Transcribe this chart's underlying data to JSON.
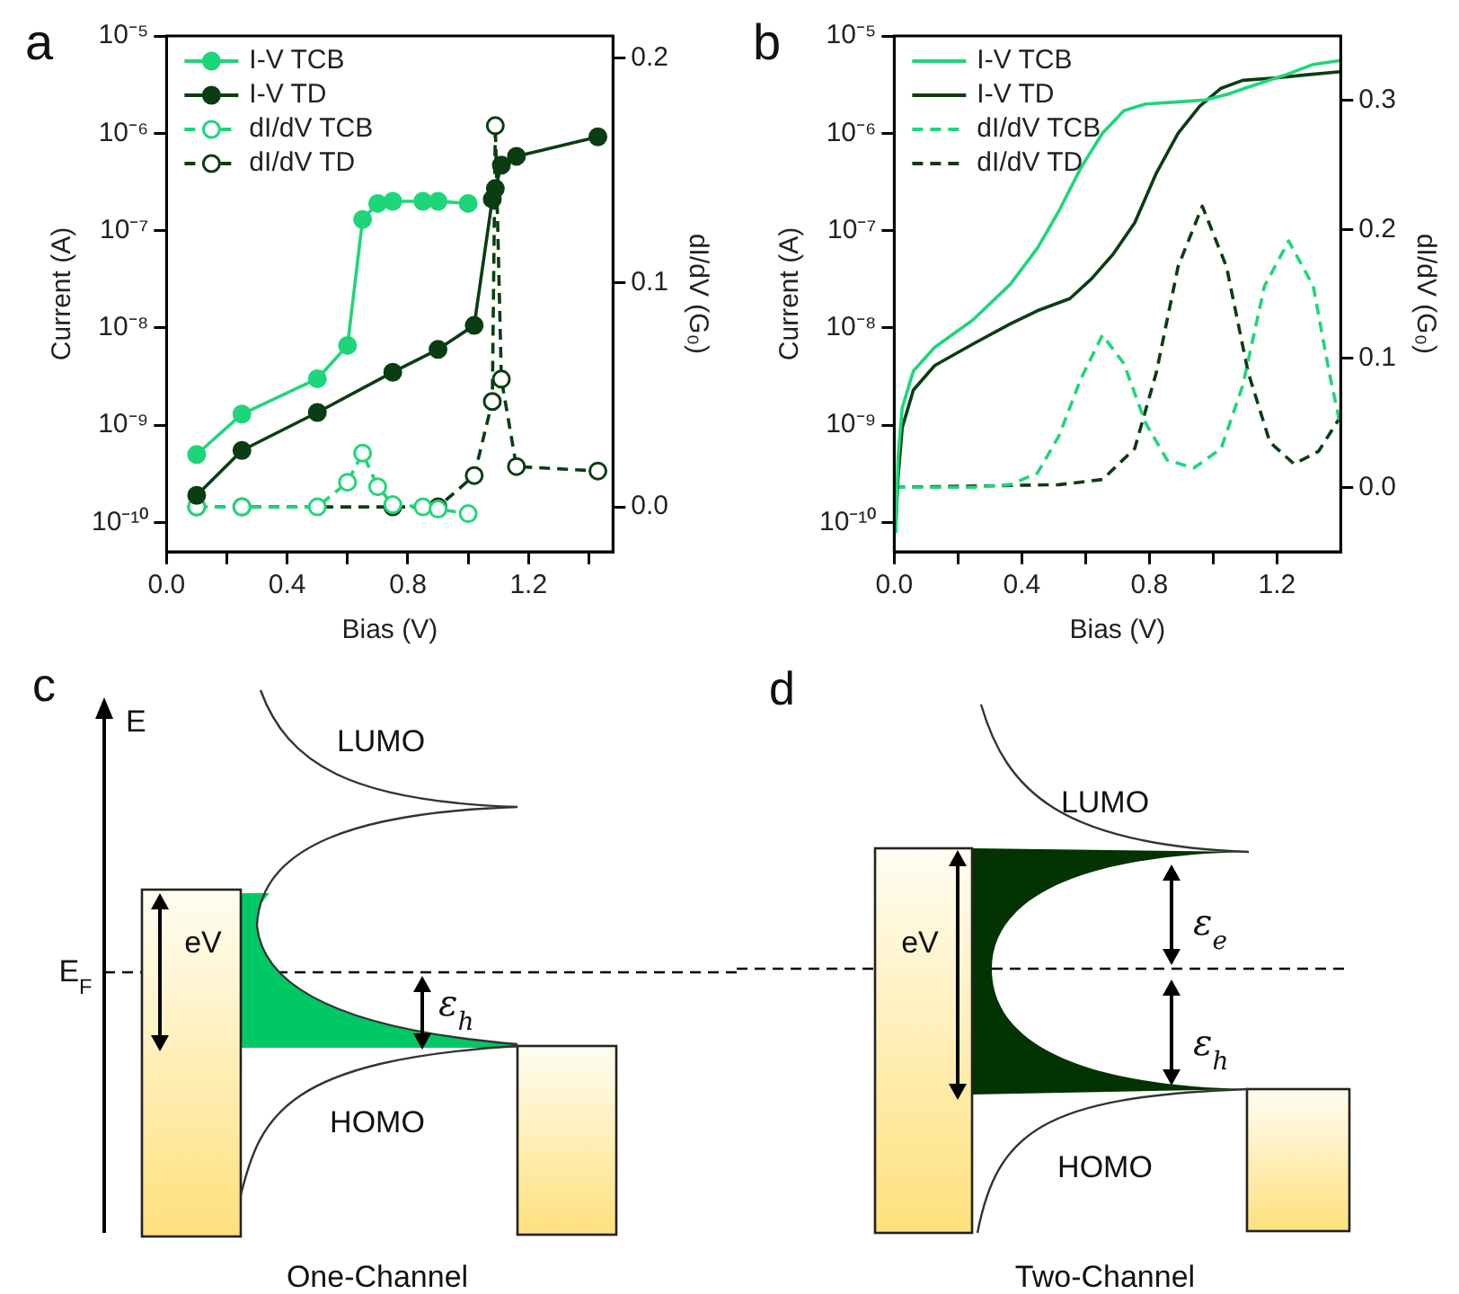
{
  "chart_data": [
    {
      "type": "line",
      "title": "a",
      "xlabel": "Bias (V)",
      "ylabel": "Current (A)",
      "y2label": "dI/dV (G₀)",
      "log": "y",
      "grid": false,
      "legend": "top left",
      "marker": "circle",
      "xlim": [
        0,
        1.48
      ],
      "xticks": [
        {
          "value": 0,
          "label": "0.0"
        },
        {
          "value": 0.2,
          "label": null
        },
        0.4,
        {
          "value": 0.6,
          "label": null
        },
        0.8,
        {
          "value": 1.0,
          "label": null
        },
        1.2,
        {
          "value": 1.4,
          "label": null
        }
      ],
      "ylim": [
        5e-11,
        1e-05
      ],
      "yticks": [
        {
          "value": 1e-10,
          "label": "10⁻¹⁰"
        },
        {
          "value": 1e-09,
          "label": "10⁻⁹"
        },
        {
          "value": 1e-08,
          "label": "10⁻⁸"
        },
        {
          "value": 1e-07,
          "label": "10⁻⁷"
        },
        {
          "value": 1e-06,
          "label": "10⁻⁶"
        },
        {
          "value": 1e-05,
          "label": "10⁻⁵"
        }
      ],
      "y2lim": [
        -0.02,
        0.21
      ],
      "y2ticks": [
        {
          "value": 0,
          "label": "0.0"
        },
        0.1,
        0.2
      ],
      "series": [
        {
          "name": "I-V TCB",
          "color": "#1ed67a",
          "line_style": "solid",
          "x": [
            0.1,
            0.25,
            0.5,
            0.6,
            0.65,
            0.7,
            0.75,
            0.85,
            0.9,
            1.0
          ],
          "values": [
            5e-10,
            1.3e-09,
            3e-09,
            6.6e-09,
            1.3e-07,
            1.9e-07,
            2e-07,
            2e-07,
            2e-07,
            1.9e-07
          ]
        },
        {
          "name": "I-V TD",
          "color": "#0a3d12",
          "line_style": "solid",
          "x": [
            0.1,
            0.25,
            0.5,
            0.75,
            0.9,
            1.02,
            1.08,
            1.09,
            1.11,
            1.16,
            1.43
          ],
          "values": [
            1.9e-10,
            5.5e-10,
            1.35e-09,
            3.5e-09,
            6e-09,
            1.06e-08,
            2.1e-07,
            2.7e-07,
            4.7e-07,
            5.8e-07,
            9.2e-07
          ]
        },
        {
          "name": "dI/dV TCB",
          "color": "#1ed67a",
          "line_style": "dashed",
          "axis": "y2",
          "x": [
            0.1,
            0.25,
            0.5,
            0.6,
            0.65,
            0.7,
            0.75,
            0.85,
            0.9,
            1.0
          ],
          "values": [
            0.0,
            0.0,
            0.0,
            0.011,
            0.024,
            0.009,
            0.001,
            0.0,
            -0.001,
            -0.003
          ]
        },
        {
          "name": "dI/dV TD",
          "color": "#0a3d12",
          "line_style": "dashed",
          "axis": "y2",
          "x": [
            0.1,
            0.25,
            0.75,
            0.9,
            1.02,
            1.08,
            1.09,
            1.11,
            1.16,
            1.43
          ],
          "values": [
            0.0,
            0.0,
            0.0,
            0.0,
            0.014,
            0.047,
            0.17,
            0.057,
            0.018,
            0.016
          ]
        }
      ]
    },
    {
      "type": "line",
      "title": "b",
      "xlabel": "Bias (V)",
      "ylabel": "Current (A)",
      "y2label": "dI/dV (G₀)",
      "log": "y",
      "grid": false,
      "legend": "top left",
      "xlim": [
        0,
        1.4
      ],
      "xticks": [
        {
          "value": 0,
          "label": "0.0"
        },
        {
          "value": 0.2,
          "label": null
        },
        0.4,
        {
          "value": 0.6,
          "label": null
        },
        0.8,
        {
          "value": 1.0,
          "label": null
        },
        1.2
      ],
      "ylim": [
        5e-11,
        1e-05
      ],
      "yticks": [
        {
          "value": 1e-10,
          "label": "10⁻¹⁰"
        },
        {
          "value": 1e-09,
          "label": "10⁻⁹"
        },
        {
          "value": 1e-08,
          "label": "10⁻⁸"
        },
        {
          "value": 1e-07,
          "label": "10⁻⁷"
        },
        {
          "value": 1e-06,
          "label": "10⁻⁶"
        },
        {
          "value": 1e-05,
          "label": "10⁻⁵"
        }
      ],
      "y2lim": [
        -0.05,
        0.35
      ],
      "y2ticks": [
        {
          "value": 0,
          "label": "0.0"
        },
        0.1,
        0.2,
        0.3
      ],
      "series": [
        {
          "name": "I-V TCB",
          "color": "#1ed67a",
          "line_style": "solid",
          "x": [
            0.005,
            0.012,
            0.025,
            0.06,
            0.127,
            0.246,
            0.364,
            0.449,
            0.517,
            0.585,
            0.653,
            0.72,
            0.788,
            0.89,
            0.975,
            1.042,
            1.127,
            1.229,
            1.314,
            1.4
          ],
          "values": [
            7.8e-11,
            4.6e-10,
            1.5e-09,
            3.6e-09,
            6.3e-09,
            1.2e-08,
            2.8e-08,
            6.6e-08,
            1.6e-07,
            4.4e-07,
            1e-06,
            1.7e-06,
            2e-06,
            2.1e-06,
            2.2e-06,
            2.5e-06,
            3.1e-06,
            4e-06,
            5.1e-06,
            5.6e-06
          ]
        },
        {
          "name": "I-V TD",
          "color": "#0a3d12",
          "line_style": "solid",
          "x": [
            0.005,
            0.012,
            0.025,
            0.06,
            0.127,
            0.246,
            0.364,
            0.449,
            0.551,
            0.619,
            0.686,
            0.754,
            0.822,
            0.89,
            0.958,
            1.025,
            1.093,
            1.195,
            1.297,
            1.4
          ],
          "values": [
            1e-10,
            2.9e-10,
            9.4e-10,
            2.3e-09,
            4.1e-09,
            6.8e-09,
            1.1e-08,
            1.5e-08,
            2e-08,
            3.2e-08,
            5.7e-08,
            1.2e-07,
            3.9e-07,
            1e-06,
            1.9e-06,
            2.9e-06,
            3.5e-06,
            3.7e-06,
            4e-06,
            4.3e-06
          ]
        },
        {
          "name": "dI/dV TCB",
          "color": "#1ed67a",
          "line_style": "dashed",
          "axis": "y2",
          "x": [
            0,
            0.246,
            0.364,
            0.449,
            0.517,
            0.585,
            0.653,
            0.72,
            0.788,
            0.856,
            0.94,
            1.025,
            1.093,
            1.161,
            1.237,
            1.314,
            1.364,
            1.4
          ],
          "values": [
            0.0,
            0.0,
            0.002,
            0.011,
            0.04,
            0.084,
            0.118,
            0.096,
            0.05,
            0.021,
            0.015,
            0.03,
            0.079,
            0.156,
            0.191,
            0.156,
            0.089,
            0.047
          ]
        },
        {
          "name": "dI/dV TD",
          "color": "#0a3d12",
          "line_style": "dashed",
          "axis": "y2",
          "x": [
            0,
            0.517,
            0.653,
            0.754,
            0.822,
            0.89,
            0.966,
            1.042,
            1.11,
            1.178,
            1.254,
            1.331,
            1.4
          ],
          "values": [
            0.0,
            0.002,
            0.006,
            0.03,
            0.089,
            0.171,
            0.218,
            0.171,
            0.089,
            0.035,
            0.018,
            0.028,
            0.055
          ]
        }
      ]
    },
    {
      "type": "other",
      "title": "c",
      "annotations": [
        "E",
        "E$_{F}$",
        "eV",
        "LUMO",
        "HOMO",
        "ε$_{h}$",
        "One-Channel"
      ]
    },
    {
      "type": "other",
      "title": "d",
      "annotations": [
        "eV",
        "LUMO",
        "HOMO",
        "ε$_{e}$",
        "ε$_{h}$",
        "Two-Channel"
      ]
    }
  ]
}
